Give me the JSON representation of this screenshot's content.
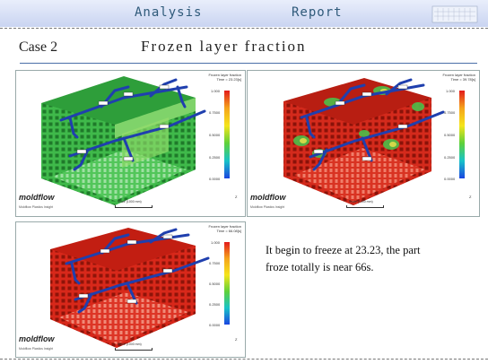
{
  "header": {
    "left": "Analysis",
    "right": "Report"
  },
  "case_label": "Case 2",
  "page_title": "Frozen layer fraction",
  "panels": [
    {
      "legend_title": "Frozen layer fraction",
      "time": "Time = 23.23[s]",
      "ticks": [
        "1.000",
        "0.7500",
        "0.5000",
        "0.2500",
        "0.0000"
      ],
      "logo": "moldflow",
      "sublogo": "Moldflow Plastics Insight",
      "scale": "Scale (1000 mm)",
      "triad": "Z"
    },
    {
      "legend_title": "Frozen layer fraction",
      "time": "Time = 39.78[s]",
      "ticks": [
        "1.000",
        "0.7500",
        "0.5000",
        "0.2500",
        "0.0000"
      ],
      "logo": "moldflow",
      "sublogo": "Moldflow Plastics Insight",
      "scale": "Scale (1000 mm)",
      "triad": "Z"
    },
    {
      "legend_title": "Frozen layer fraction",
      "time": "Time = 66.08[s]",
      "ticks": [
        "1.000",
        "0.7500",
        "0.5000",
        "0.2500",
        "0.0000"
      ],
      "logo": "moldflow",
      "sublogo": "Moldflow Plastics Insight",
      "scale": "Scale (1000 mm)",
      "triad": "Z"
    }
  ],
  "note": "It begin to freeze at 23.23, the part froze totally is near 66s.",
  "colors": {
    "frozen": "#d42a1c",
    "partial": "#2fb03a",
    "runner": "#1f3fae"
  }
}
